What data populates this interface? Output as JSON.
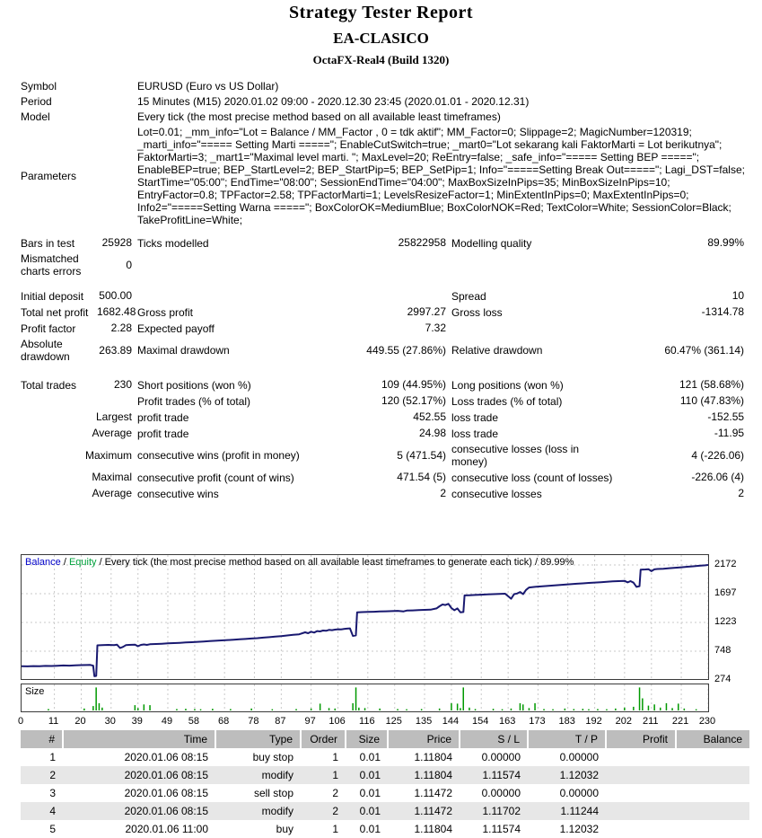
{
  "report": {
    "title": "Strategy Tester Report",
    "ea_name": "EA-CLASICO",
    "server": "OctaFX-Real4 (Build 1320)"
  },
  "summary": {
    "symbol": {
      "label": "Symbol",
      "value": "EURUSD (Euro vs US Dollar)"
    },
    "period": {
      "label": "Period",
      "value": "15 Minutes (M15) 2020.01.02 09:00 - 2020.12.30 23:45 (2020.01.01 - 2020.12.31)"
    },
    "model": {
      "label": "Model",
      "value": "Every tick (the most precise method based on all available least timeframes)"
    },
    "parameters": {
      "label": "Parameters",
      "value": "Lot=0.01; _mm_info=\"Lot = Balance / MM_Factor , 0 = tdk aktif\"; MM_Factor=0; Slippage=2; MagicNumber=120319; _marti_info=\"===== Setting Marti =====\"; EnableCutSwitch=true; _mart0=\"Lot sekarang kali FaktorMarti = Lot berikutnya\"; FaktorMarti=3; _mart1=\"Maximal level marti. \"; MaxLevel=20; ReEntry=false; _safe_info=\"===== Setting BEP =====\"; EnableBEP=true; BEP_StartLevel=2; BEP_StartPip=5; BEP_SetPip=1; Info=\"=====Setting Break Out=====\"; Lagi_DST=false; StartTime=\"05:00\"; EndTime=\"08:00\"; SessionEndTime=\"04:00\"; MaxBoxSizeInPips=35; MinBoxSizeInPips=10; EntryFactor=0.8; TPFactor=2.58; TPFactorMarti=1; LevelsResizeFactor=1; MinExtentInPips=0; MaxExtentInPips=0; Info2=\"=====Setting Warna =====\"; BoxColorOK=MediumBlue; BoxColorNOK=Red; TextColor=White; SessionColor=Black; TakeProfitLine=White;"
    },
    "bars": {
      "c1": "Bars in test",
      "c2": "25928",
      "c3": "Ticks modelled",
      "c4": "25822958",
      "c5": "Modelling quality",
      "c6": "89.99%"
    },
    "mismatched": {
      "c1": "Mismatched charts errors",
      "c2": "0"
    },
    "deposit": {
      "c1": "Initial deposit",
      "c2": "500.00",
      "c5": "Spread",
      "c6": "10"
    },
    "netprofit": {
      "c1": "Total net profit",
      "c2": "1682.48",
      "c3": "Gross profit",
      "c4": "2997.27",
      "c5": "Gross loss",
      "c6": "-1314.78"
    },
    "pf": {
      "c1": "Profit factor",
      "c2": "2.28",
      "c3": "Expected payoff",
      "c4": "7.32"
    },
    "absdd": {
      "c1": "Absolute drawdown",
      "c2": "263.89",
      "c3": "Maximal drawdown",
      "c4": "449.55 (27.86%)",
      "c5": "Relative drawdown",
      "c6": "60.47% (361.14)"
    },
    "trades": {
      "c1": "Total trades",
      "c2": "230",
      "c3": "Short positions (won %)",
      "c4": "109 (44.95%)",
      "c5": "Long positions (won %)",
      "c6": "121 (58.68%)"
    },
    "ptrades": {
      "c3": "Profit trades (% of total)",
      "c4": "120 (52.17%)",
      "c5": "Loss trades (% of total)",
      "c6": "110 (47.83%)"
    },
    "largest": {
      "c2": "Largest",
      "c3": "profit trade",
      "c4": "452.55",
      "c5": "loss trade",
      "c6": "-152.55"
    },
    "average": {
      "c2": "Average",
      "c3": "profit trade",
      "c4": "24.98",
      "c5": "loss trade",
      "c6": "-11.95"
    },
    "maximum": {
      "c2": "Maximum",
      "c3": "consecutive wins (profit in money)",
      "c4": "5 (471.54)",
      "c5": "consecutive losses (loss in money)",
      "c6": "4 (-226.06)"
    },
    "maximal": {
      "c2": "Maximal",
      "c3": "consecutive profit (count of wins)",
      "c4": "471.54 (5)",
      "c5": "consecutive loss (count of losses)",
      "c6": "-226.06 (4)"
    },
    "avgconsec": {
      "c2": "Average",
      "c3": "consecutive wins",
      "c4": "2",
      "c5": "consecutive losses",
      "c6": "2"
    }
  },
  "chart_data": {
    "type": "line",
    "legend": {
      "balance": "Balance",
      "sep1": " / ",
      "equity": "Equity",
      "rest": " / Every tick (the most precise method based on all available least timeframes to generate each tick) / 89.99%"
    },
    "size_panel_label": "Size",
    "x_range": [
      0,
      230
    ],
    "x_ticks": [
      0,
      11,
      20,
      30,
      39,
      49,
      58,
      68,
      78,
      87,
      97,
      106,
      116,
      125,
      135,
      144,
      154,
      163,
      173,
      183,
      192,
      202,
      211,
      221,
      230
    ],
    "y_ticks": [
      2172,
      1697,
      1223,
      748,
      274
    ],
    "colors": {
      "balance_line": "#191970",
      "equity_line": "#00a23c",
      "grid": "#c9c9c9",
      "size_bar": "#009900"
    },
    "balance_curve": [
      [
        0,
        500
      ],
      [
        2,
        498
      ],
      [
        4,
        503
      ],
      [
        6,
        501
      ],
      [
        8,
        506
      ],
      [
        10,
        504
      ],
      [
        12,
        509
      ],
      [
        14,
        512
      ],
      [
        16,
        510
      ],
      [
        18,
        515
      ],
      [
        20,
        518
      ],
      [
        22,
        520
      ],
      [
        23,
        522
      ],
      [
        24,
        510
      ],
      [
        24.4,
        335
      ],
      [
        25,
        340
      ],
      [
        25.4,
        845
      ],
      [
        27,
        848
      ],
      [
        29,
        852
      ],
      [
        31,
        850
      ],
      [
        32,
        855
      ],
      [
        33,
        800
      ],
      [
        34,
        820
      ],
      [
        35,
        850
      ],
      [
        36,
        853
      ],
      [
        38,
        857
      ],
      [
        39,
        830
      ],
      [
        40,
        852
      ],
      [
        41,
        860
      ],
      [
        42,
        852
      ],
      [
        43,
        863
      ],
      [
        45,
        867
      ],
      [
        47,
        872
      ],
      [
        49,
        877
      ],
      [
        51,
        882
      ],
      [
        53,
        887
      ],
      [
        55,
        892
      ],
      [
        57,
        897
      ],
      [
        59,
        902
      ],
      [
        61,
        908
      ],
      [
        63,
        914
      ],
      [
        65,
        920
      ],
      [
        67,
        926
      ],
      [
        69,
        932
      ],
      [
        71,
        938
      ],
      [
        73,
        944
      ],
      [
        75,
        950
      ],
      [
        77,
        957
      ],
      [
        79,
        964
      ],
      [
        81,
        972
      ],
      [
        83,
        980
      ],
      [
        85,
        989
      ],
      [
        87,
        998
      ],
      [
        89,
        1008
      ],
      [
        91,
        1018
      ],
      [
        93,
        1028
      ],
      [
        95,
        1060
      ],
      [
        96,
        1045
      ],
      [
        97,
        1070
      ],
      [
        98,
        1055
      ],
      [
        99,
        1080
      ],
      [
        100,
        1075
      ],
      [
        101,
        1090
      ],
      [
        102,
        1085
      ],
      [
        103,
        1100
      ],
      [
        104,
        1095
      ],
      [
        105,
        1105
      ],
      [
        106,
        1110
      ],
      [
        107,
        1108
      ],
      [
        108,
        1115
      ],
      [
        109,
        1120
      ],
      [
        110,
        1125
      ],
      [
        111,
        1000
      ],
      [
        112,
        1010
      ],
      [
        112.4,
        1390
      ],
      [
        114,
        1393
      ],
      [
        116,
        1397
      ],
      [
        118,
        1400
      ],
      [
        120,
        1404
      ],
      [
        122,
        1407
      ],
      [
        124,
        1410
      ],
      [
        126,
        1414
      ],
      [
        128,
        1405
      ],
      [
        129,
        1418
      ],
      [
        131,
        1422
      ],
      [
        133,
        1426
      ],
      [
        135,
        1430
      ],
      [
        137,
        1434
      ],
      [
        139,
        1455
      ],
      [
        140,
        1490
      ],
      [
        141,
        1520
      ],
      [
        142,
        1510
      ],
      [
        143,
        1530
      ],
      [
        144,
        1460
      ],
      [
        145,
        1425
      ],
      [
        146,
        1455
      ],
      [
        147,
        1390
      ],
      [
        148,
        1395
      ],
      [
        148.4,
        1670
      ],
      [
        150,
        1673
      ],
      [
        152,
        1677
      ],
      [
        154,
        1681
      ],
      [
        156,
        1685
      ],
      [
        158,
        1690
      ],
      [
        160,
        1694
      ],
      [
        162,
        1698
      ],
      [
        164,
        1615
      ],
      [
        165,
        1690
      ],
      [
        166,
        1700
      ],
      [
        167,
        1725
      ],
      [
        168,
        1690
      ],
      [
        169,
        1760
      ],
      [
        170,
        1800
      ],
      [
        172,
        1810
      ],
      [
        174,
        1818
      ],
      [
        176,
        1825
      ],
      [
        178,
        1832
      ],
      [
        180,
        1840
      ],
      [
        182,
        1848
      ],
      [
        184,
        1855
      ],
      [
        186,
        1862
      ],
      [
        188,
        1868
      ],
      [
        190,
        1875
      ],
      [
        192,
        1882
      ],
      [
        194,
        1888
      ],
      [
        196,
        1894
      ],
      [
        198,
        1900
      ],
      [
        200,
        1905
      ],
      [
        202,
        1910
      ],
      [
        203,
        1885
      ],
      [
        204,
        1905
      ],
      [
        205,
        1880
      ],
      [
        206,
        1810
      ],
      [
        207,
        1820
      ],
      [
        207.4,
        2095
      ],
      [
        209,
        2098
      ],
      [
        210,
        2102
      ],
      [
        211,
        2070
      ],
      [
        212,
        2100
      ],
      [
        213,
        2105
      ],
      [
        215,
        2110
      ],
      [
        217,
        2118
      ],
      [
        219,
        2126
      ],
      [
        221,
        2134
      ],
      [
        223,
        2142
      ],
      [
        225,
        2150
      ],
      [
        227,
        2158
      ],
      [
        229,
        2166
      ],
      [
        230,
        2172
      ]
    ],
    "size_bars": [
      [
        9,
        0.06
      ],
      [
        21,
        0.08
      ],
      [
        24,
        0.18
      ],
      [
        25,
        0.95
      ],
      [
        26,
        0.3
      ],
      [
        27,
        0.12
      ],
      [
        38,
        0.22
      ],
      [
        39,
        0.1
      ],
      [
        41,
        0.25
      ],
      [
        43,
        0.22
      ],
      [
        52,
        0.06
      ],
      [
        55,
        0.07
      ],
      [
        58,
        0.06
      ],
      [
        60,
        0.05
      ],
      [
        64,
        0.07
      ],
      [
        70,
        0.06
      ],
      [
        77,
        0.08
      ],
      [
        84,
        0.05
      ],
      [
        92,
        0.06
      ],
      [
        97,
        0.08
      ],
      [
        100,
        0.28
      ],
      [
        103,
        0.1
      ],
      [
        105,
        0.08
      ],
      [
        111,
        0.3
      ],
      [
        112,
        0.95
      ],
      [
        113,
        0.12
      ],
      [
        115,
        0.1
      ],
      [
        120,
        0.08
      ],
      [
        126,
        0.06
      ],
      [
        129,
        0.05
      ],
      [
        134,
        0.06
      ],
      [
        140,
        0.08
      ],
      [
        144,
        0.3
      ],
      [
        146,
        0.28
      ],
      [
        147,
        0.1
      ],
      [
        148,
        0.95
      ],
      [
        150,
        0.12
      ],
      [
        152,
        0.06
      ],
      [
        158,
        0.07
      ],
      [
        161,
        0.05
      ],
      [
        164,
        0.08
      ],
      [
        167,
        0.3
      ],
      [
        168,
        0.25
      ],
      [
        170,
        0.1
      ],
      [
        172,
        0.3
      ],
      [
        175,
        0.06
      ],
      [
        178,
        0.05
      ],
      [
        182,
        0.08
      ],
      [
        185,
        0.06
      ],
      [
        188,
        0.07
      ],
      [
        190,
        0.05
      ],
      [
        193,
        0.06
      ],
      [
        196,
        0.05
      ],
      [
        199,
        0.08
      ],
      [
        202,
        0.12
      ],
      [
        205,
        0.15
      ],
      [
        207,
        0.95
      ],
      [
        208,
        0.5
      ],
      [
        210,
        0.2
      ],
      [
        212,
        0.25
      ],
      [
        214,
        0.12
      ],
      [
        216,
        0.3
      ],
      [
        218,
        0.1
      ],
      [
        220,
        0.28
      ],
      [
        222,
        0.08
      ],
      [
        226,
        0.05
      ]
    ]
  },
  "trades_table": {
    "headers": [
      "#",
      "Time",
      "Type",
      "Order",
      "Size",
      "Price",
      "S / L",
      "T / P",
      "Profit",
      "Balance"
    ],
    "rows": [
      [
        "1",
        "2020.01.06 08:15",
        "buy stop",
        "1",
        "0.01",
        "1.11804",
        "0.00000",
        "0.00000",
        "",
        ""
      ],
      [
        "2",
        "2020.01.06 08:15",
        "modify",
        "1",
        "0.01",
        "1.11804",
        "1.11574",
        "1.12032",
        "",
        ""
      ],
      [
        "3",
        "2020.01.06 08:15",
        "sell stop",
        "2",
        "0.01",
        "1.11472",
        "0.00000",
        "0.00000",
        "",
        ""
      ],
      [
        "4",
        "2020.01.06 08:15",
        "modify",
        "2",
        "0.01",
        "1.11472",
        "1.11702",
        "1.11244",
        "",
        ""
      ],
      [
        "5",
        "2020.01.06 11:00",
        "buy",
        "1",
        "0.01",
        "1.11804",
        "1.11574",
        "1.12032",
        "",
        ""
      ]
    ]
  }
}
